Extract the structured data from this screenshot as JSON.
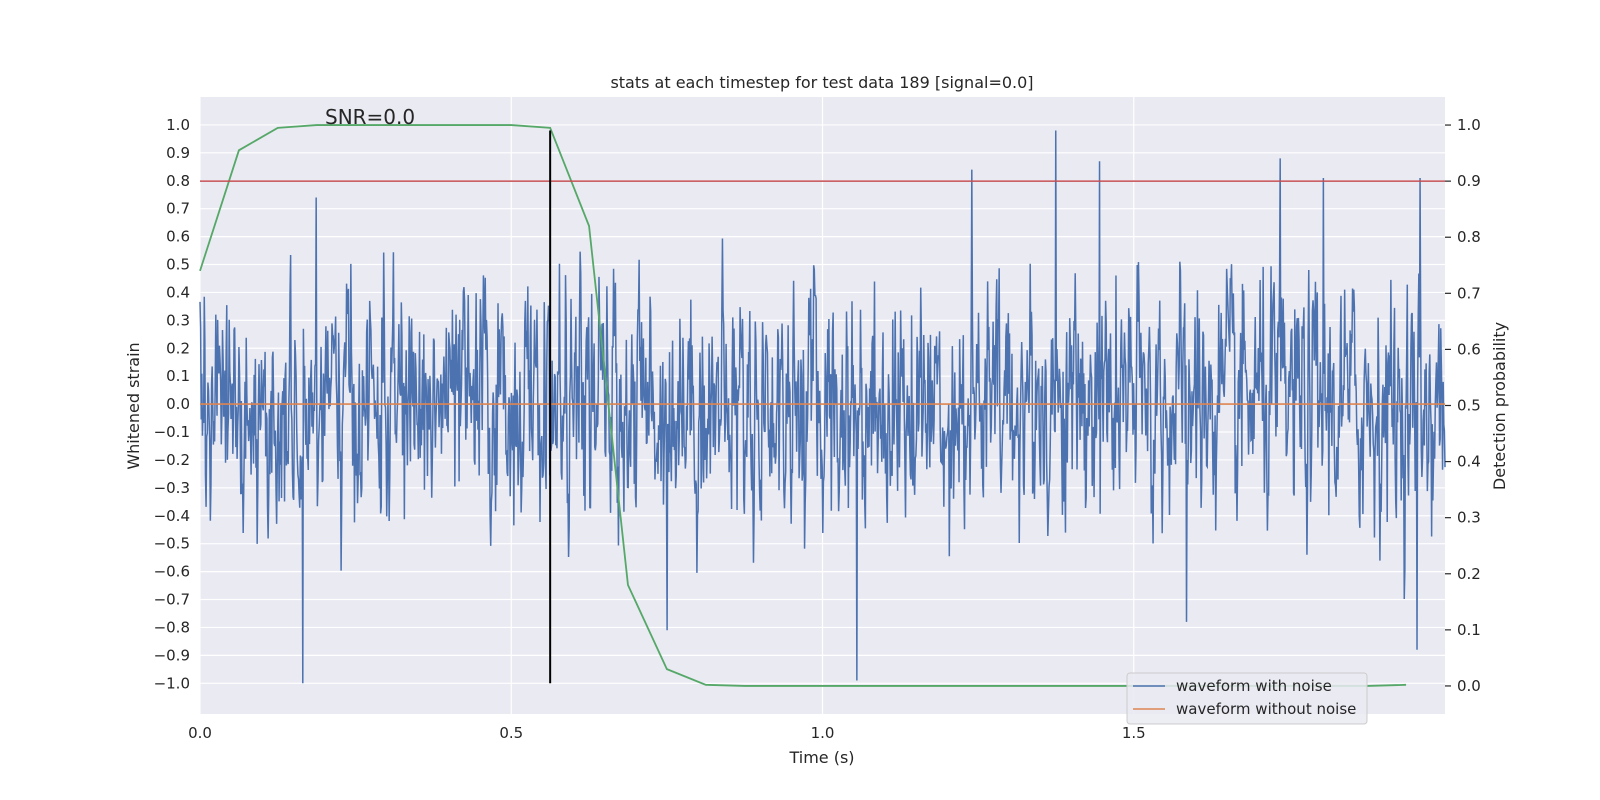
{
  "chart_data": {
    "type": "line",
    "title": "stats at each timestep for test data 189 [signal=0.0]",
    "annotation": "SNR=0.0",
    "xlabel": "Time (s)",
    "ylabel_left": "Whitened strain",
    "ylabel_right": "Detection probability",
    "xlim": [
      0.0,
      2.0
    ],
    "ylim_left": [
      -1.11,
      1.1
    ],
    "ylim_right": [
      -0.05,
      1.05
    ],
    "x_ticks": [
      "0.0",
      "0.5",
      "1.0",
      "1.5"
    ],
    "x_tick_values": [
      0.0,
      0.5,
      1.0,
      1.5
    ],
    "y_left_ticks": [
      "1.0",
      "0.9",
      "0.8",
      "0.7",
      "0.6",
      "0.5",
      "0.4",
      "0.3",
      "0.2",
      "0.1",
      "0.0",
      "−0.1",
      "−0.2",
      "−0.3",
      "−0.4",
      "−0.5",
      "−0.6",
      "−0.7",
      "−0.8",
      "−0.9",
      "−1.0"
    ],
    "y_left_tick_values": [
      1.0,
      0.9,
      0.8,
      0.7,
      0.6,
      0.5,
      0.4,
      0.3,
      0.2,
      0.1,
      0.0,
      -0.1,
      -0.2,
      -0.3,
      -0.4,
      -0.5,
      -0.6,
      -0.7,
      -0.8,
      -0.9,
      -1.0
    ],
    "y_right_ticks": [
      "1.0",
      "0.9",
      "0.8",
      "0.7",
      "0.6",
      "0.5",
      "0.4",
      "0.3",
      "0.2",
      "0.1",
      "0.0"
    ],
    "y_right_tick_values": [
      1.0,
      0.9,
      0.8,
      0.7,
      0.6,
      0.5,
      0.4,
      0.3,
      0.2,
      0.1,
      0.0
    ],
    "series": [
      {
        "name": "waveform with noise",
        "color": "#4c72b0",
        "axis": "left",
        "kind": "noise",
        "t_start": 0.0,
        "t_end": 2.0,
        "samples": 2048,
        "amplitude_min": -1.0,
        "amplitude_max": 0.98,
        "sigma": 0.25,
        "peaks": [
          {
            "t": 0.165,
            "v": -1.0
          },
          {
            "t": 0.187,
            "v": 0.74
          },
          {
            "t": 0.75,
            "v": -0.81
          },
          {
            "t": 1.055,
            "v": -0.99
          },
          {
            "t": 1.24,
            "v": 0.84
          },
          {
            "t": 1.375,
            "v": 0.98
          },
          {
            "t": 1.445,
            "v": 0.87
          },
          {
            "t": 1.585,
            "v": -0.78
          },
          {
            "t": 1.735,
            "v": 0.88
          },
          {
            "t": 1.805,
            "v": 0.81
          },
          {
            "t": 1.955,
            "v": -0.88
          },
          {
            "t": 1.96,
            "v": 0.81
          }
        ]
      },
      {
        "name": "waveform without noise",
        "color": "#dd8452",
        "axis": "left",
        "kind": "line",
        "x": [
          0.0,
          2.0
        ],
        "y": [
          0.0,
          0.0
        ]
      },
      {
        "name": "detection probability",
        "color": "#55a868",
        "axis": "right",
        "kind": "line",
        "x": [
          0.0,
          0.0625,
          0.125,
          0.1875,
          0.25,
          0.3125,
          0.375,
          0.4375,
          0.5,
          0.5625,
          0.625,
          0.6875,
          0.75,
          0.8125,
          0.875,
          0.9375,
          1.0,
          1.0625,
          1.125,
          1.1875,
          1.25,
          1.3125,
          1.375,
          1.4375,
          1.5,
          1.5625,
          1.625,
          1.6875,
          1.75,
          1.8125,
          1.875,
          1.9375
        ],
        "y": [
          0.74,
          0.955,
          0.995,
          1.0,
          1.0,
          1.0,
          1.0,
          1.0,
          1.0,
          0.995,
          0.82,
          0.18,
          0.03,
          0.002,
          0.0,
          0.0,
          0.0,
          0.0,
          0.0,
          0.0,
          0.0,
          0.0,
          0.0,
          0.0,
          0.0,
          0.0,
          0.0,
          0.0,
          0.0,
          0.0,
          0.0,
          0.002
        ]
      }
    ],
    "threshold": {
      "value": 0.9,
      "axis": "right",
      "color": "#c44e52"
    },
    "vertical_marker": {
      "x": 0.5625,
      "y_from": -1.0,
      "y_to": 0.98,
      "color": "#000000"
    },
    "legend": {
      "placement": "lower-right",
      "entries": [
        {
          "label": "waveform with noise",
          "color": "#4c72b0"
        },
        {
          "label": "waveform without noise",
          "color": "#dd8452"
        }
      ]
    },
    "style": {
      "background": "#eaeaf2",
      "grid": true,
      "grid_color": "#ffffff"
    }
  }
}
